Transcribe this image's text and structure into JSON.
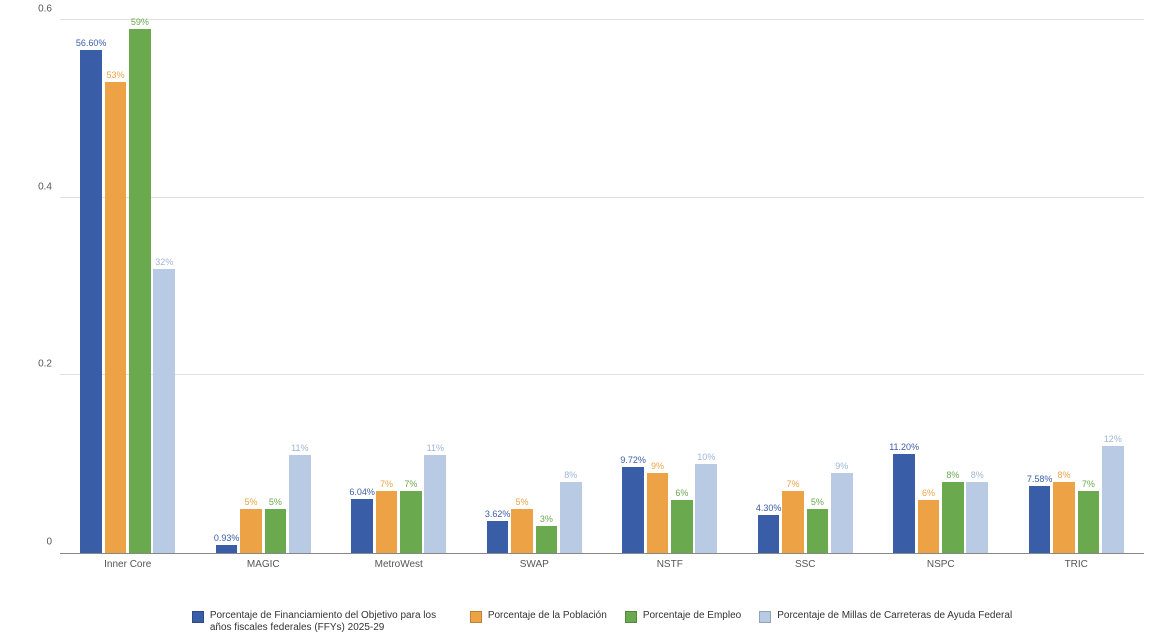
{
  "chart": {
    "type": "bar",
    "background_color": "#ffffff",
    "grid_color": "#e0e0e0",
    "axis_color": "#888888",
    "ylim_max": 0.6,
    "ytick_step": 0.2,
    "yticks": [
      "0",
      "0.2",
      "0.4",
      "0.6"
    ],
    "ytick_fontsize": 10,
    "ytick_color": "#555555",
    "xtick_fontsize": 10,
    "xtick_color": "#555555",
    "bar_label_fontsize": 9,
    "bar_width_ratio": 0.16,
    "bar_gap_ratio": 0.02,
    "categories": [
      "Inner Core",
      "MAGIC",
      "MetroWest",
      "SWAP",
      "NSTF",
      "SSC",
      "NSPC",
      "TRIC"
    ],
    "series": [
      {
        "key": "s1",
        "label": "Porcentaje de Financiamiento del Objetivo para los años fiscales federales (FFYs) 2025-29",
        "color": "#3a5da8",
        "label_color": "#3a5da8",
        "values": [
          0.566,
          0.0093,
          0.0604,
          0.0362,
          0.0972,
          0.043,
          0.112,
          0.0758
        ],
        "display": [
          "56.60%",
          "0.93%",
          "6.04%",
          "3.62%",
          "9.72%",
          "4.30%",
          "11.20%",
          "7.58%"
        ]
      },
      {
        "key": "s2",
        "label": "Porcentaje de la Población",
        "color": "#eda245",
        "label_color": "#eda245",
        "values": [
          0.53,
          0.05,
          0.07,
          0.05,
          0.09,
          0.07,
          0.06,
          0.08
        ],
        "display": [
          "53%",
          "5%",
          "7%",
          "5%",
          "9%",
          "7%",
          "6%",
          "8%"
        ]
      },
      {
        "key": "s3",
        "label": "Porcentaje de Empleo",
        "color": "#6aa94e",
        "label_color": "#6aa94e",
        "values": [
          0.59,
          0.05,
          0.07,
          0.03,
          0.06,
          0.05,
          0.08,
          0.07
        ],
        "display": [
          "59%",
          "5%",
          "7%",
          "3%",
          "6%",
          "5%",
          "8%",
          "7%"
        ]
      },
      {
        "key": "s4",
        "label": "Porcentaje de Millas de Carreteras de Ayuda Federal",
        "color": "#b9cbe4",
        "label_color": "#9db5d6",
        "values": [
          0.32,
          0.11,
          0.11,
          0.08,
          0.1,
          0.09,
          0.08,
          0.12
        ],
        "display": [
          "32%",
          "11%",
          "11%",
          "8%",
          "10%",
          "9%",
          "8%",
          "12%"
        ]
      }
    ],
    "legend_fontsize": 10
  }
}
